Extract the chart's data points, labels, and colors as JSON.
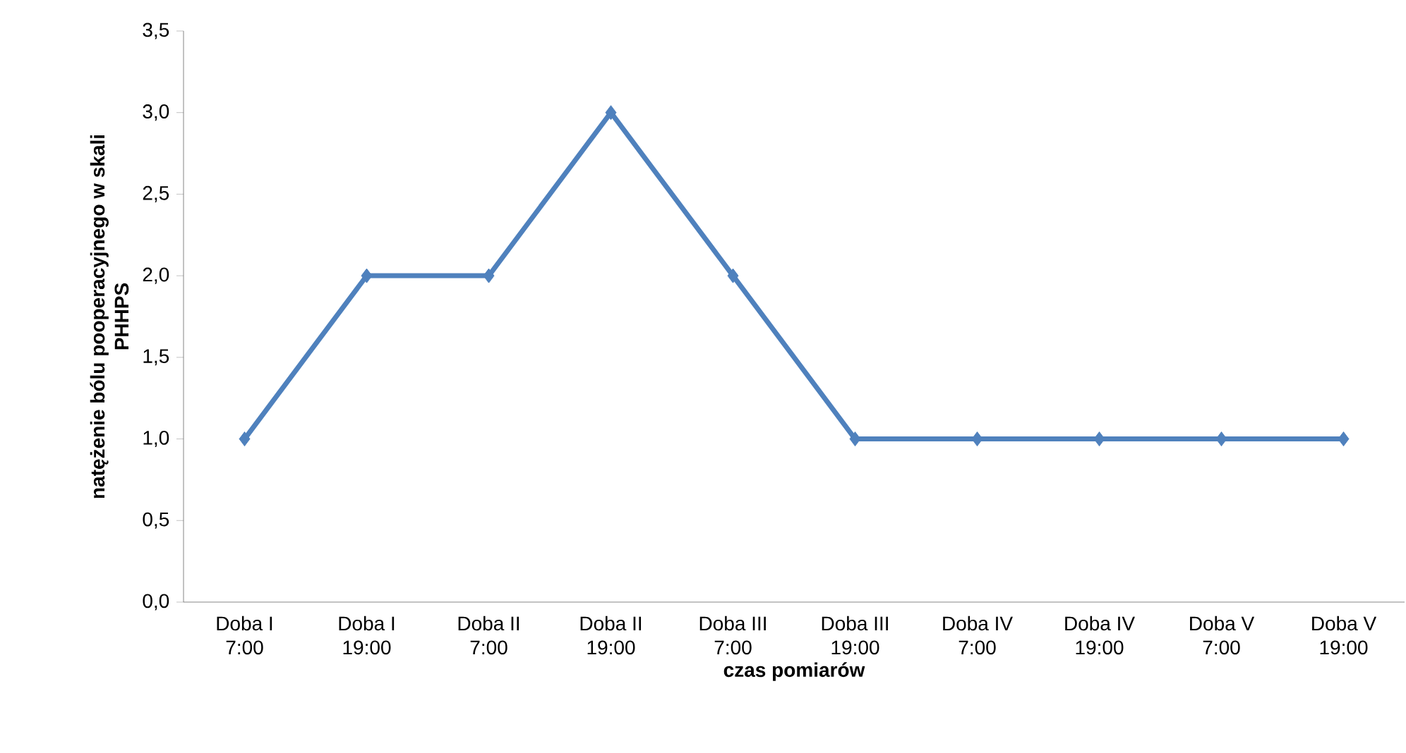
{
  "chart_data": {
    "type": "line",
    "xlabel": "czas pomiarów",
    "ylabel": "natężenie bólu pooperacyjnego w skali PHHPS",
    "categories": [
      "Doba I 7:00",
      "Doba I 19:00",
      "Doba II 7:00",
      "Doba II 19:00",
      "Doba III 7:00",
      "Doba III 19:00",
      "Doba IV 7:00",
      "Doba IV 19:00",
      "Doba V 7:00",
      "Doba V 19:00"
    ],
    "values": [
      1,
      2,
      2,
      3,
      2,
      1,
      1,
      1,
      1,
      1
    ],
    "color": "#4f81bd",
    "marker": "diamond",
    "line_style": "solid",
    "ylim": [
      0,
      3.5
    ],
    "yticks": [
      {
        "value": 0,
        "label": "0,0"
      },
      {
        "value": 0.5,
        "label": "0,5"
      },
      {
        "value": 1,
        "label": "1,0"
      },
      {
        "value": 1.5,
        "label": "1,5"
      },
      {
        "value": 2,
        "label": "2,0"
      },
      {
        "value": 2.5,
        "label": "2,5"
      },
      {
        "value": 3,
        "label": "3,0"
      },
      {
        "value": 3.5,
        "label": "3,5"
      }
    ],
    "grid": false
  }
}
